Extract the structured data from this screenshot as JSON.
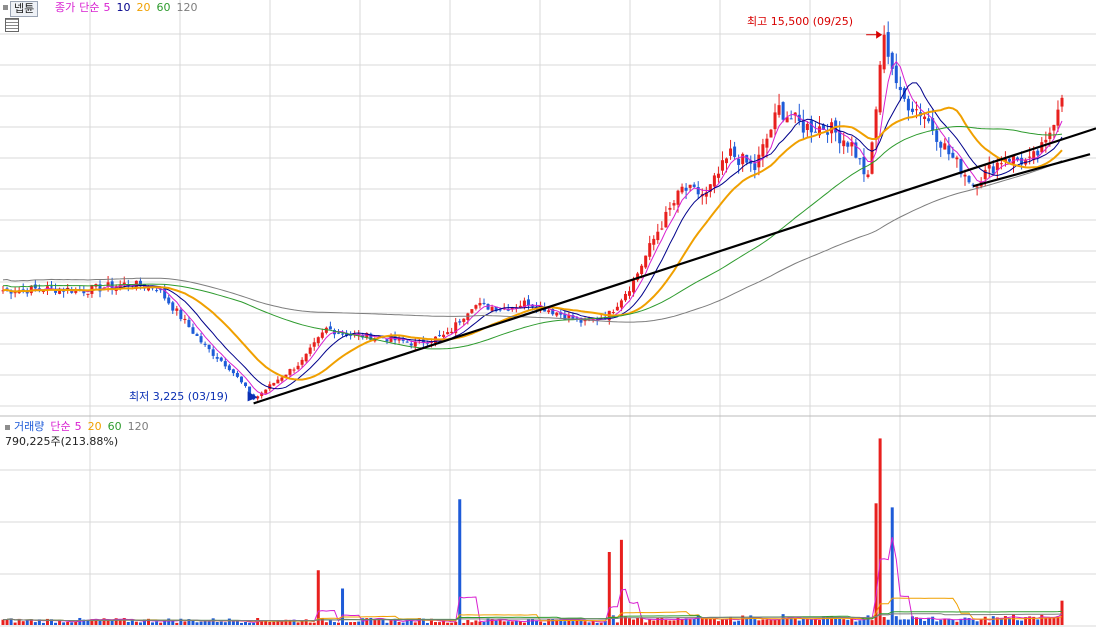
{
  "colors": {
    "up": "#e8201e",
    "down": "#1e5bd8",
    "ma5": "#d81fd1",
    "ma10": "#00008b",
    "ma20": "#f0a000",
    "ma60": "#2e9b2e",
    "ma120": "#7d7d7d",
    "grid": "#d8d8d8",
    "trend": "#000000",
    "high_label": "#d80000",
    "low_label": "#0a2fb3"
  },
  "ui": {
    "tab_label": "넵튠",
    "grid_icon": "grid-icon"
  },
  "price_legend": {
    "series": "종가",
    "method": "단순",
    "p5": "5",
    "p10": "10",
    "p20": "20",
    "p60": "60",
    "p120": "120"
  },
  "volume_legend": {
    "series": "거래량",
    "method": "단순",
    "p5": "5",
    "p20": "20",
    "p60": "60",
    "p120": "120"
  },
  "volume_info": "790,225주(213.88%)",
  "chart_data": [
    {
      "type": "candlestick",
      "panel": "price",
      "annotations": {
        "high": {
          "label": "최고 15,500 (09/25)",
          "value": 15500,
          "date": "09/25"
        },
        "low": {
          "label": "최저 3,225 (03/19)",
          "value": 3225,
          "date": "03/19"
        }
      },
      "ylim": [
        2800,
        16400
      ],
      "moving_averages": [
        5,
        10,
        20,
        60,
        120
      ],
      "trendlines": 2,
      "anchors": [
        [
          0,
          6900
        ],
        [
          12,
          6950
        ],
        [
          20,
          6900
        ],
        [
          30,
          7100
        ],
        [
          38,
          7000
        ],
        [
          44,
          6000
        ],
        [
          50,
          5000
        ],
        [
          56,
          4300
        ],
        [
          60,
          3600
        ],
        [
          62,
          3225
        ],
        [
          68,
          3900
        ],
        [
          74,
          4500
        ],
        [
          80,
          5600
        ],
        [
          86,
          5400
        ],
        [
          94,
          5300
        ],
        [
          102,
          5100
        ],
        [
          110,
          5400
        ],
        [
          116,
          6400
        ],
        [
          124,
          6300
        ],
        [
          130,
          6500
        ],
        [
          136,
          6200
        ],
        [
          144,
          5800
        ],
        [
          150,
          6100
        ],
        [
          156,
          7200
        ],
        [
          162,
          8900
        ],
        [
          168,
          10300
        ],
        [
          174,
          10100
        ],
        [
          180,
          11500
        ],
        [
          186,
          11000
        ],
        [
          192,
          13000
        ],
        [
          198,
          12400
        ],
        [
          204,
          12400
        ],
        [
          210,
          11800
        ],
        [
          214,
          10600
        ],
        [
          218,
          15500
        ],
        [
          222,
          13400
        ],
        [
          228,
          12800
        ],
        [
          234,
          11500
        ],
        [
          240,
          10500
        ],
        [
          248,
          11400
        ],
        [
          254,
          11200
        ],
        [
          258,
          11800
        ],
        [
          262,
          13600
        ]
      ]
    },
    {
      "type": "bar",
      "panel": "volume",
      "series_name": "거래량",
      "spikes": [
        {
          "day": 78,
          "ratio": 0.27
        },
        {
          "day": 84,
          "ratio": 0.18
        },
        {
          "day": 113,
          "ratio": 0.62
        },
        {
          "day": 150,
          "ratio": 0.36
        },
        {
          "day": 153,
          "ratio": 0.42
        },
        {
          "day": 217,
          "ratio": 0.92
        },
        {
          "day": 216,
          "ratio": 0.6
        },
        {
          "day": 220,
          "ratio": 0.58
        },
        {
          "day": 262,
          "ratio": 0.12
        }
      ]
    }
  ]
}
